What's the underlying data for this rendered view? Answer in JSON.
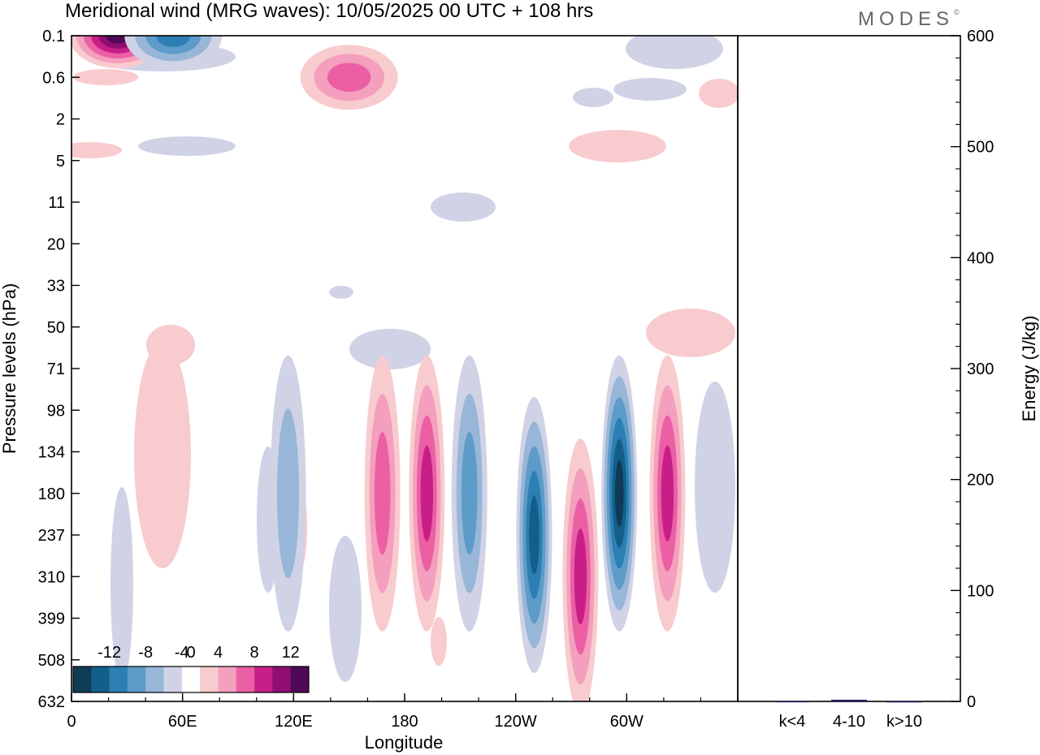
{
  "header": {
    "title": "Meridional wind (MRG waves):  10/05/2025  00 UTC  + 108 hrs",
    "brand": "MODES",
    "brand_mark": "©"
  },
  "chart_data": [
    {
      "type": "heatmap",
      "title": "Meridional wind (MRG waves):  10/05/2025  00 UTC  + 108 hrs",
      "xlabel": "Longitude",
      "ylabel": "Pressure levels (hPa)",
      "x_ticks": [
        "0",
        "60E",
        "120E",
        "180",
        "120W",
        "60W"
      ],
      "x_tick_values": [
        0,
        60,
        120,
        180,
        240,
        300
      ],
      "xlim": [
        0,
        360
      ],
      "y_ticks": [
        "0.1",
        "0.6",
        "2",
        "5",
        "11",
        "20",
        "33",
        "50",
        "71",
        "98",
        "134",
        "180",
        "237",
        "310",
        "399",
        "508",
        "632"
      ],
      "y_scale": "model-level (ticks equally spaced)",
      "colorbar": {
        "labels": [
          "-12",
          "-8",
          "-4",
          "0",
          "4",
          "8",
          "12"
        ],
        "levels": [
          -14,
          -12,
          -10,
          -8,
          -6,
          -4,
          -2,
          2,
          4,
          6,
          8,
          10,
          12,
          14
        ],
        "colors": [
          "#0f3b57",
          "#135f8a",
          "#2b7fb3",
          "#5d9bc8",
          "#98b6d7",
          "#d0d2e6",
          "#ffffff",
          "#f8cbcf",
          "#f39fbd",
          "#ec5fa4",
          "#c71f87",
          "#8f0f72",
          "#4e0a56"
        ],
        "placement": "bottom-left"
      },
      "features": [
        {
          "lon": 25,
          "level": "0.3",
          "value": 14
        },
        {
          "lon": 55,
          "level": "0.5",
          "value": -8
        },
        {
          "lon": 150,
          "level": "0.6",
          "value": 6
        },
        {
          "lon": 117,
          "level": "180",
          "value": -5
        },
        {
          "lon": 168,
          "level": "180",
          "value": 6
        },
        {
          "lon": 192,
          "level": "180",
          "value": 8
        },
        {
          "lon": 215,
          "level": "180",
          "value": -6
        },
        {
          "lon": 250,
          "level": "237",
          "value": -10
        },
        {
          "lon": 275,
          "level": "310",
          "value": 9
        },
        {
          "lon": 296,
          "level": "180",
          "value": -12
        },
        {
          "lon": 322,
          "level": "180",
          "value": 9
        }
      ]
    },
    {
      "type": "bar",
      "ylabel": "Energy (J/kg)",
      "categories": [
        "k<4",
        "4-10",
        "k>10"
      ],
      "values": [
        0.3,
        1.5,
        0.2
      ],
      "ylim": [
        0,
        600
      ],
      "y_ticks": [
        "0",
        "100",
        "200",
        "300",
        "400",
        "500",
        "600"
      ],
      "y_tick_values": [
        0,
        100,
        200,
        300,
        400,
        500,
        600
      ]
    }
  ]
}
